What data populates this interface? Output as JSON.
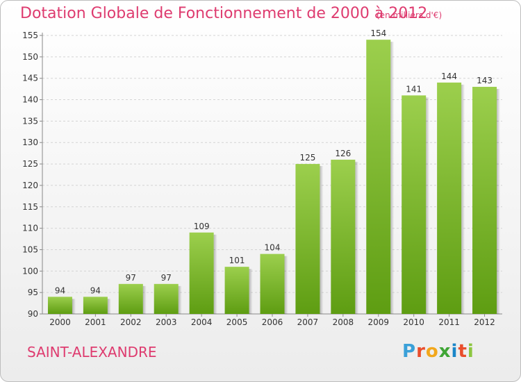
{
  "chart_data": {
    "type": "bar",
    "title": "Dotation Globale de Fonctionnement de 2000 à 2012",
    "subtitle": "(en milliers d'€)",
    "categories": [
      "2000",
      "2001",
      "2002",
      "2003",
      "2004",
      "2005",
      "2006",
      "2007",
      "2008",
      "2009",
      "2010",
      "2011",
      "2012"
    ],
    "values": [
      94,
      94,
      97,
      97,
      109,
      101,
      104,
      125,
      126,
      154,
      141,
      144,
      143
    ],
    "ylim": [
      90,
      155
    ],
    "yticks": [
      90,
      95,
      100,
      105,
      110,
      115,
      120,
      125,
      130,
      135,
      140,
      145,
      150,
      155
    ],
    "grid": true,
    "colors": {
      "bar_top": "#9ccf4d",
      "bar_bottom": "#5e9d12",
      "text_accent": "#de3b6f"
    }
  },
  "footer": {
    "commune": "SAINT-ALEXANDRE",
    "logo_letters": [
      "P",
      "r",
      "o",
      "x",
      "i",
      "t",
      "i"
    ]
  }
}
